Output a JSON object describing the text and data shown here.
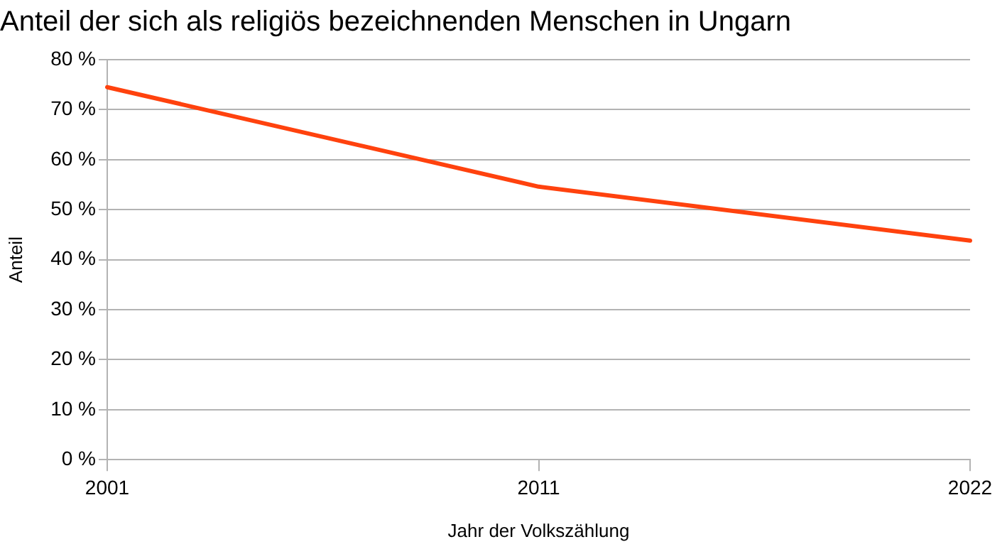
{
  "chart_data": {
    "type": "line",
    "title": "Anteil der sich als religiös bezeichnenden Menschen in Ungarn",
    "xlabel": "Jahr der Volkszählung",
    "ylabel": "Anteil",
    "categories": [
      "2001",
      "2011",
      "2022"
    ],
    "series": [
      {
        "color": "#ff420e",
        "values": [
          74.5,
          54.6,
          43.8
        ]
      }
    ],
    "ylim": [
      0,
      80
    ],
    "yticks": [
      {
        "value": 0,
        "label": "0 %"
      },
      {
        "value": 10,
        "label": "10 %"
      },
      {
        "value": 20,
        "label": "20 %"
      },
      {
        "value": 30,
        "label": "30 %"
      },
      {
        "value": 40,
        "label": "40 %"
      },
      {
        "value": 50,
        "label": "50 %"
      },
      {
        "value": 60,
        "label": "60 %"
      },
      {
        "value": 70,
        "label": "70 %"
      },
      {
        "value": 80,
        "label": "80 %"
      }
    ],
    "grid": "y",
    "legend": false,
    "marker": "none",
    "line_style": "solid"
  }
}
